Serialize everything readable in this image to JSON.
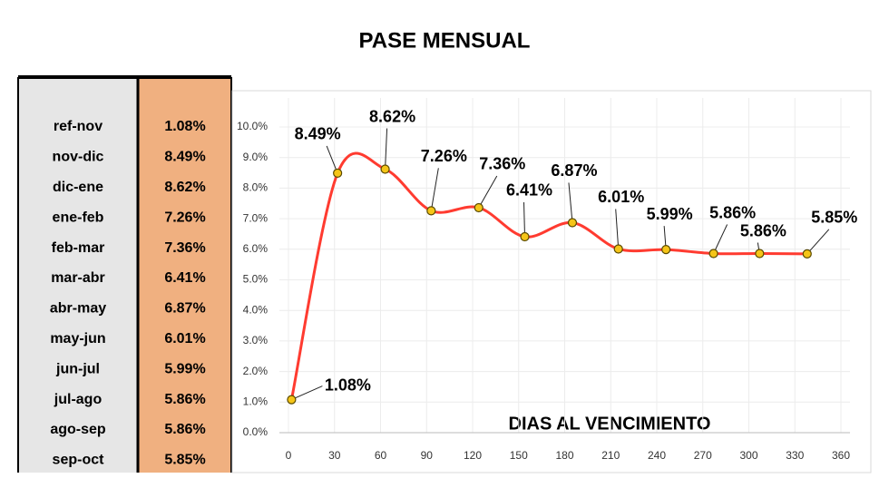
{
  "title": "PASE MENSUAL",
  "table": {
    "rows": [
      [
        "ref-nov",
        "1.08%"
      ],
      [
        "nov-dic",
        "8.49%"
      ],
      [
        "dic-ene",
        "8.62%"
      ],
      [
        "ene-feb",
        "7.26%"
      ],
      [
        "feb-mar",
        "7.36%"
      ],
      [
        "mar-abr",
        "6.41%"
      ],
      [
        "abr-may",
        "6.87%"
      ],
      [
        "may-jun",
        "6.01%"
      ],
      [
        "jun-jul",
        "5.99%"
      ],
      [
        "jul-ago",
        "5.86%"
      ],
      [
        "ago-sep",
        "5.86%"
      ],
      [
        "sep-oct",
        "5.85%"
      ]
    ]
  },
  "chart_data": {
    "type": "line",
    "x_label": "DIAS AL VENCIMIENTO",
    "x": [
      2,
      32,
      63,
      93,
      124,
      154,
      185,
      215,
      246,
      277,
      307,
      338
    ],
    "series": [
      {
        "name": "pase",
        "color": "#ff3b30",
        "values": [
          1.08,
          8.49,
          8.62,
          7.26,
          7.36,
          6.41,
          6.87,
          6.01,
          5.99,
          5.86,
          5.86,
          5.85
        ],
        "value_labels": [
          "1.08%",
          "8.49%",
          "8.62%",
          "7.26%",
          "7.36%",
          "6.41%",
          "6.87%",
          "6.01%",
          "5.99%",
          "5.86%",
          "5.86%",
          "5.85%"
        ]
      }
    ],
    "xlim": [
      0,
      360
    ],
    "xticks": [
      0,
      30,
      60,
      90,
      120,
      150,
      180,
      210,
      240,
      270,
      300,
      330,
      360
    ],
    "ylim": [
      0,
      10
    ],
    "yticks": [
      {
        "value": 0,
        "label": "0.0%"
      },
      {
        "value": 1,
        "label": "1.0%"
      },
      {
        "value": 2,
        "label": "2.0%"
      },
      {
        "value": 3,
        "label": "3.0%"
      },
      {
        "value": 4,
        "label": "4.0%"
      },
      {
        "value": 5,
        "label": "5.0%"
      },
      {
        "value": 6,
        "label": "6.0%"
      },
      {
        "value": 7,
        "label": "7.0%"
      },
      {
        "value": 8,
        "label": "8.0%"
      },
      {
        "value": 9,
        "label": "9.0%"
      },
      {
        "value": 10,
        "label": "10.0%"
      }
    ],
    "grid": true,
    "marker_color": "#f5c518"
  }
}
